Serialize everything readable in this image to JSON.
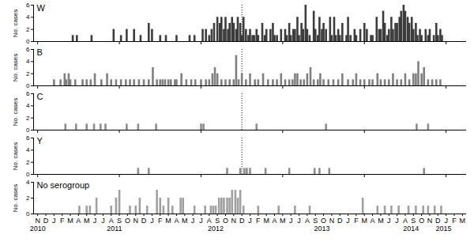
{
  "chart_data": [
    {
      "type": "bar",
      "title": "W",
      "ylabel": "No. cases",
      "color": "#3c3c3c",
      "tick_labels": "y",
      "xlim": [
        -0.5,
        52.5
      ],
      "ylim": [
        0,
        6
      ],
      "yticks": [
        0,
        2,
        4,
        6
      ],
      "vline": 25,
      "x": [
        4.3,
        4.8,
        6.6,
        9.3,
        10.2,
        10.9,
        11.8,
        12.6,
        13.6,
        14.0,
        15.0,
        15.7,
        17.0,
        18.6,
        19.2,
        20.2,
        20.6,
        21.0,
        21.3,
        21.6,
        22.0,
        22.3,
        22.5,
        22.8,
        23.0,
        23.3,
        23.5,
        23.8,
        24.0,
        24.3,
        24.5,
        24.8,
        25.0,
        25.2,
        25.5,
        25.8,
        26.0,
        26.3,
        26.5,
        26.8,
        27.0,
        27.5,
        27.8,
        28.0,
        28.5,
        28.8,
        29.0,
        29.3,
        29.8,
        30.3,
        30.5,
        30.8,
        31.0,
        31.3,
        31.5,
        31.8,
        32.0,
        32.3,
        32.5,
        32.8,
        33.0,
        33.3,
        33.8,
        34.0,
        34.3,
        34.5,
        34.8,
        35.0,
        35.3,
        35.8,
        36.0,
        36.3,
        36.5,
        36.8,
        37.0,
        37.3,
        37.8,
        38.0,
        38.3,
        38.8,
        39.0,
        39.5,
        40.0,
        40.3,
        40.8,
        41.0,
        41.5,
        41.8,
        42.0,
        42.3,
        42.5,
        42.8,
        43.0,
        43.3,
        43.5,
        43.8,
        44.0,
        44.3,
        44.5,
        44.8,
        45.0,
        45.3,
        45.5,
        45.8,
        46.0,
        46.3,
        46.5,
        46.8,
        47.0,
        47.5,
        47.8,
        48.0,
        48.5,
        48.8,
        49.0,
        49.3,
        49.5
      ],
      "values": [
        1,
        1,
        1,
        2,
        1,
        2,
        2,
        1,
        3,
        2,
        1,
        1,
        1,
        1,
        1,
        2,
        2,
        1,
        2,
        3,
        4,
        3,
        4,
        2,
        4,
        2,
        3,
        4,
        3,
        2,
        4,
        3,
        1,
        4,
        2,
        1,
        2,
        1,
        1,
        2,
        1,
        3,
        1,
        2,
        2,
        3,
        1,
        1,
        2,
        2,
        1,
        3,
        1,
        2,
        2,
        4,
        1,
        3,
        2,
        6,
        2,
        1,
        5,
        2,
        1,
        4,
        2,
        3,
        2,
        4,
        1,
        4,
        1,
        2,
        1,
        3,
        1,
        4,
        1,
        2,
        1,
        2,
        3,
        2,
        1,
        1,
        4,
        2,
        2,
        5,
        3,
        1,
        2,
        4,
        2,
        3,
        3,
        4,
        5,
        6,
        5,
        4,
        3,
        4,
        2,
        3,
        1,
        2,
        1,
        2,
        1,
        2,
        1,
        3,
        1,
        2,
        1
      ]
    },
    {
      "type": "bar",
      "title": "B",
      "ylabel": "No. cases",
      "color": "#7f7f7f",
      "tick_labels": "y",
      "xlim": [
        -0.5,
        52.5
      ],
      "ylim": [
        0,
        6
      ],
      "yticks": [
        0,
        2,
        4,
        6
      ],
      "vline": 25,
      "x": [
        2.0,
        2.8,
        3.3,
        3.5,
        3.8,
        4.0,
        4.6,
        5.5,
        6.0,
        6.5,
        7.0,
        7.8,
        8.5,
        9.0,
        9.6,
        10.2,
        10.8,
        11.3,
        11.8,
        12.4,
        13.0,
        13.6,
        14.1,
        14.6,
        15.0,
        15.3,
        15.6,
        16.0,
        16.3,
        16.8,
        17.0,
        17.6,
        18.2,
        18.8,
        19.3,
        20.0,
        20.6,
        21.0,
        21.4,
        21.7,
        22.0,
        22.5,
        23.0,
        23.5,
        24.0,
        24.3,
        24.6,
        25.0,
        25.5,
        26.0,
        26.6,
        27.0,
        27.6,
        28.2,
        28.8,
        29.3,
        29.8,
        30.3,
        30.8,
        31.2,
        31.5,
        31.8,
        32.2,
        32.6,
        33.0,
        33.4,
        33.8,
        34.3,
        34.6,
        35.0,
        35.6,
        36.2,
        36.8,
        37.3,
        38.0,
        38.6,
        39.0,
        39.5,
        40.0,
        40.6,
        41.0,
        41.6,
        42.0,
        42.5,
        43.0,
        43.5,
        44.0,
        44.5,
        45.0,
        45.5,
        46.0,
        46.3,
        46.6,
        47.0,
        47.3,
        47.8,
        48.3,
        48.8,
        49.3
      ],
      "values": [
        1,
        1,
        2,
        1,
        2,
        1,
        1,
        1,
        1,
        1,
        2,
        1,
        2,
        1,
        1,
        1,
        1,
        1,
        1,
        1,
        1,
        1,
        3,
        1,
        1,
        1,
        1,
        1,
        1,
        1,
        1,
        2,
        1,
        1,
        1,
        1,
        1,
        1,
        2,
        3,
        2,
        1,
        1,
        1,
        1,
        5,
        1,
        2,
        1,
        2,
        1,
        1,
        2,
        1,
        1,
        1,
        2,
        1,
        1,
        1,
        2,
        2,
        1,
        1,
        2,
        3,
        1,
        1,
        2,
        1,
        1,
        1,
        1,
        2,
        1,
        1,
        2,
        1,
        1,
        1,
        1,
        2,
        1,
        1,
        1,
        2,
        1,
        1,
        2,
        1,
        2,
        2,
        4,
        2,
        3,
        1,
        1,
        1,
        1
      ]
    },
    {
      "type": "bar",
      "title": "C",
      "ylabel": "No. cases",
      "color": "#8c8c8c",
      "tick_labels": "y",
      "xlim": [
        -0.5,
        52.5
      ],
      "ylim": [
        0,
        6
      ],
      "yticks": [
        0,
        2,
        4,
        6
      ],
      "vline": 25,
      "x": [
        3.4,
        4.7,
        6.0,
        6.9,
        7.7,
        8.3,
        10.9,
        12.3,
        14.5,
        20.0,
        20.3,
        26.8,
        35.3,
        46.4,
        47.8
      ],
      "values": [
        1,
        1,
        1,
        1,
        1,
        1,
        1,
        1,
        1,
        1,
        1,
        1,
        1,
        1,
        1
      ]
    },
    {
      "type": "bar",
      "title": "Y",
      "ylabel": "No. cases",
      "color": "#8c8c8c",
      "tick_labels": "y",
      "xlim": [
        -0.5,
        52.5
      ],
      "ylim": [
        0,
        6
      ],
      "yticks": [
        0,
        2,
        4,
        6
      ],
      "vline": 25,
      "x": [
        12.3,
        13.6,
        23.2,
        24.8,
        25.3,
        25.6,
        26.0,
        27.9,
        30.8,
        33.9,
        34.5,
        35.7,
        47.3
      ],
      "values": [
        1,
        1,
        1,
        1,
        1,
        1,
        1,
        1,
        1,
        1,
        1,
        1,
        1
      ]
    },
    {
      "type": "bar",
      "title": "No serogroup",
      "ylabel": "No. cases",
      "color": "#a0a0a0",
      "xlim": [
        -0.5,
        52.5
      ],
      "ylim": [
        0,
        4
      ],
      "yticks": [
        0,
        2,
        4
      ],
      "xticks": [
        {
          "value": 0,
          "label": "N"
        },
        {
          "value": 1,
          "label": "D"
        },
        {
          "value": 2,
          "label": "J"
        },
        {
          "value": 3,
          "label": "F"
        },
        {
          "value": 4,
          "label": "M"
        },
        {
          "value": 5,
          "label": "A"
        },
        {
          "value": 6,
          "label": "M"
        },
        {
          "value": 7,
          "label": "J"
        },
        {
          "value": 8,
          "label": "J"
        },
        {
          "value": 9,
          "label": "A"
        },
        {
          "value": 10,
          "label": "S"
        },
        {
          "value": 11,
          "label": "O"
        },
        {
          "value": 12,
          "label": "N"
        },
        {
          "value": 13,
          "label": "D"
        },
        {
          "value": 14,
          "label": "J"
        },
        {
          "value": 15,
          "label": "F"
        },
        {
          "value": 16,
          "label": "M"
        },
        {
          "value": 17,
          "label": "A"
        },
        {
          "value": 18,
          "label": "M"
        },
        {
          "value": 19,
          "label": "J"
        },
        {
          "value": 20,
          "label": "J"
        },
        {
          "value": 21,
          "label": "A"
        },
        {
          "value": 22,
          "label": "S"
        },
        {
          "value": 23,
          "label": "O"
        },
        {
          "value": 24,
          "label": "N"
        },
        {
          "value": 25,
          "label": "D"
        },
        {
          "value": 26,
          "label": "J"
        },
        {
          "value": 27,
          "label": "F"
        },
        {
          "value": 28,
          "label": "M"
        },
        {
          "value": 29,
          "label": "A"
        },
        {
          "value": 30,
          "label": "M"
        },
        {
          "value": 31,
          "label": "J"
        },
        {
          "value": 32,
          "label": "J"
        },
        {
          "value": 33,
          "label": "A"
        },
        {
          "value": 34,
          "label": "S"
        },
        {
          "value": 35,
          "label": "O"
        },
        {
          "value": 36,
          "label": "N"
        },
        {
          "value": 37,
          "label": "D"
        },
        {
          "value": 38,
          "label": "J"
        },
        {
          "value": 39,
          "label": "F"
        },
        {
          "value": 40,
          "label": "M"
        },
        {
          "value": 41,
          "label": "A"
        },
        {
          "value": 42,
          "label": "M"
        },
        {
          "value": 43,
          "label": "J"
        },
        {
          "value": 44,
          "label": "J"
        },
        {
          "value": 45,
          "label": "A"
        },
        {
          "value": 46,
          "label": "S"
        },
        {
          "value": 47,
          "label": "O"
        },
        {
          "value": 48,
          "label": "N"
        },
        {
          "value": 49,
          "label": "D"
        },
        {
          "value": 50,
          "label": "J"
        },
        {
          "value": 51,
          "label": "F"
        },
        {
          "value": 52,
          "label": "M"
        }
      ],
      "year_labels": [
        {
          "value": 0,
          "label": "2010"
        },
        {
          "value": 9.4,
          "label": "2011"
        },
        {
          "value": 21.8,
          "label": "2012"
        },
        {
          "value": 34.8,
          "label": "2013"
        },
        {
          "value": 45.7,
          "label": "2014"
        },
        {
          "value": 49.7,
          "label": "2015"
        }
      ],
      "x": [
        5.1,
        6.0,
        6.4,
        7.2,
        9.0,
        9.6,
        10.0,
        11.3,
        12.0,
        12.5,
        13.4,
        14.6,
        15.0,
        15.4,
        16.0,
        16.5,
        17.5,
        17.8,
        19.2,
        20.5,
        21.2,
        21.5,
        21.8,
        22.2,
        22.5,
        22.8,
        23.2,
        23.5,
        23.8,
        24.2,
        24.5,
        24.8,
        25.2,
        27.0,
        29.5,
        31.5,
        33.3,
        39.8,
        41.6,
        42.5,
        43.3,
        44.2,
        45.4,
        46.3,
        47.2,
        47.8,
        48.6,
        49.4
      ],
      "values": [
        1,
        1,
        1,
        2,
        1,
        2,
        3,
        1,
        1,
        2,
        1,
        3,
        2,
        1,
        2,
        1,
        2,
        2,
        1,
        1,
        1,
        1,
        1,
        2,
        2,
        2,
        2,
        2,
        3,
        3,
        2,
        3,
        1,
        1,
        1,
        1,
        1,
        2,
        1,
        1,
        1,
        1,
        1,
        1,
        1,
        1,
        1,
        1
      ]
    }
  ]
}
